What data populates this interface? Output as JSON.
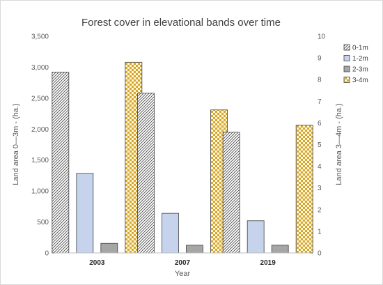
{
  "chart_data": {
    "type": "bar",
    "title": "Forest cover in elevational bands over time",
    "xlabel": "Year",
    "ylabel_left": "Land area 0—3m - (ha.)",
    "ylabel_right": "Land area 3—4m - (ha.)",
    "categories": [
      "2003",
      "2007",
      "2019"
    ],
    "ylim_left": [
      0,
      3500
    ],
    "yticks_left": [
      "0",
      "500",
      "1,000",
      "1,500",
      "2,000",
      "2,500",
      "3,000",
      "3,500"
    ],
    "ylim_right": [
      0,
      10
    ],
    "yticks_right": [
      "0",
      "1",
      "2",
      "3",
      "4",
      "5",
      "6",
      "7",
      "8",
      "9",
      "10"
    ],
    "grid": false,
    "legend_position": "right",
    "series": [
      {
        "name": "0-1m",
        "axis": "left",
        "values": [
          2920,
          2580,
          1950
        ],
        "fill": "#ffffff",
        "pattern": "diagonal-hatch"
      },
      {
        "name": "1-2m",
        "axis": "left",
        "values": [
          1285,
          640,
          520
        ],
        "fill": "#c5d3ec",
        "pattern": "solid"
      },
      {
        "name": "2-3m",
        "axis": "left",
        "values": [
          155,
          125,
          125
        ],
        "fill": "#a6a6a6",
        "pattern": "solid"
      },
      {
        "name": "3-4m",
        "axis": "right",
        "values": [
          8.8,
          6.6,
          5.9
        ],
        "fill": "#d4a830",
        "pattern": "checker"
      }
    ]
  }
}
